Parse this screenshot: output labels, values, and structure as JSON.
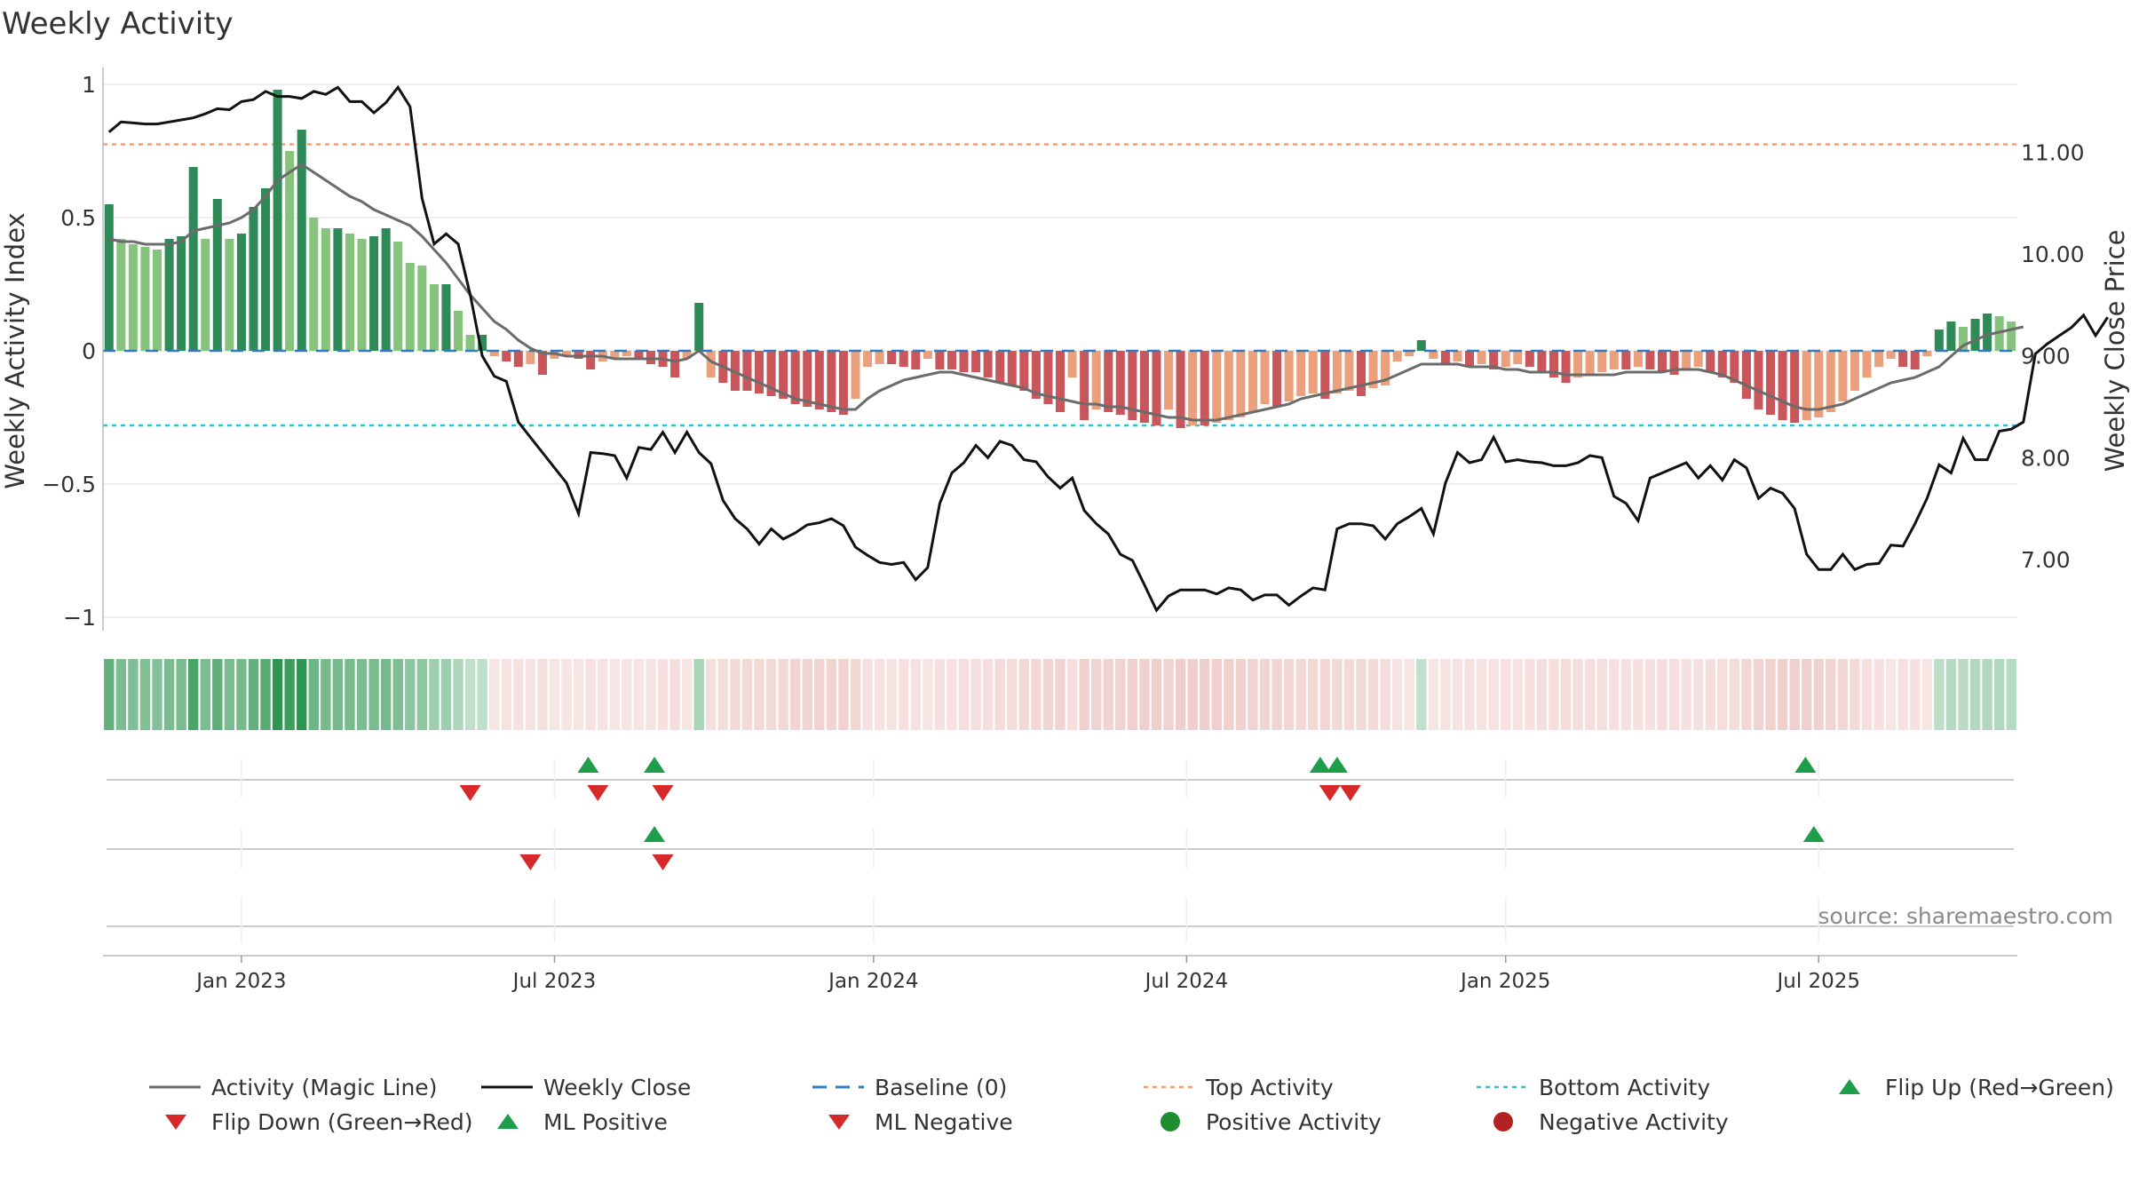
{
  "chart_data": {
    "type": "bar",
    "title": "Weekly Activity",
    "ylabel": "Weekly Activity Index",
    "y2label": "Weekly Close Price",
    "ylim": [
      -1.05,
      1.05
    ],
    "y2lim": [
      6.3,
      11.8
    ],
    "yticks": [
      "1",
      "0.5",
      "0",
      "−0.5",
      "−1"
    ],
    "ytick_values": [
      1,
      0.5,
      0,
      -0.5,
      -1
    ],
    "y2ticks": [
      "11.00",
      "10.00",
      "9.00",
      "8.00",
      "7.00"
    ],
    "y2tick_values": [
      11,
      10,
      9,
      8,
      7
    ],
    "top_activity": 0.775,
    "bottom_activity": -0.28,
    "baseline": 0,
    "start_date": "2022-10-17",
    "xticks": [
      {
        "label": "Jan 2023",
        "week": 11
      },
      {
        "label": "Jul 2023",
        "week": 37
      },
      {
        "label": "Jan 2024",
        "week": 63.5
      },
      {
        "label": "Jul 2024",
        "week": 89.5
      },
      {
        "label": "Jan 2025",
        "week": 116
      },
      {
        "label": "Jul 2025",
        "week": 142
      }
    ],
    "activity": [
      0.55,
      0.42,
      0.4,
      0.39,
      0.38,
      0.42,
      0.43,
      0.69,
      0.42,
      0.57,
      0.42,
      0.44,
      0.54,
      0.61,
      0.98,
      0.75,
      0.83,
      0.5,
      0.46,
      0.46,
      0.44,
      0.42,
      0.43,
      0.46,
      0.41,
      0.33,
      0.32,
      0.25,
      0.25,
      0.15,
      0.06,
      0.06,
      -0.02,
      -0.04,
      -0.06,
      -0.05,
      -0.09,
      -0.03,
      -0.02,
      -0.03,
      -0.07,
      -0.04,
      -0.03,
      -0.02,
      -0.03,
      -0.05,
      -0.06,
      -0.1,
      -0.03,
      0.18,
      -0.1,
      -0.12,
      -0.15,
      -0.15,
      -0.16,
      -0.17,
      -0.18,
      -0.2,
      -0.21,
      -0.22,
      -0.23,
      -0.24,
      -0.18,
      -0.06,
      -0.05,
      -0.05,
      -0.06,
      -0.07,
      -0.03,
      -0.07,
      -0.07,
      -0.08,
      -0.08,
      -0.1,
      -0.12,
      -0.13,
      -0.15,
      -0.18,
      -0.2,
      -0.23,
      -0.1,
      -0.26,
      -0.22,
      -0.23,
      -0.24,
      -0.26,
      -0.27,
      -0.28,
      -0.22,
      -0.29,
      -0.28,
      -0.28,
      -0.27,
      -0.26,
      -0.25,
      -0.23,
      -0.2,
      -0.21,
      -0.19,
      -0.17,
      -0.16,
      -0.18,
      -0.16,
      -0.15,
      -0.17,
      -0.14,
      -0.13,
      -0.04,
      -0.02,
      0.04,
      -0.03,
      -0.05,
      -0.04,
      -0.06,
      -0.05,
      -0.07,
      -0.06,
      -0.05,
      -0.06,
      -0.08,
      -0.1,
      -0.12,
      -0.1,
      -0.09,
      -0.08,
      -0.07,
      -0.07,
      -0.06,
      -0.07,
      -0.08,
      -0.09,
      -0.07,
      -0.06,
      -0.08,
      -0.1,
      -0.12,
      -0.18,
      -0.22,
      -0.24,
      -0.26,
      -0.27,
      -0.26,
      -0.25,
      -0.23,
      -0.19,
      -0.15,
      -0.1,
      -0.06,
      -0.03,
      -0.06,
      -0.07,
      -0.02,
      0.08,
      0.11,
      0.09,
      0.12,
      0.14,
      0.13,
      0.11
    ],
    "magic_line": [
      0.42,
      0.41,
      0.41,
      0.4,
      0.4,
      0.4,
      0.41,
      0.45,
      0.46,
      0.47,
      0.48,
      0.5,
      0.53,
      0.58,
      0.64,
      0.67,
      0.7,
      0.67,
      0.64,
      0.61,
      0.58,
      0.56,
      0.53,
      0.51,
      0.49,
      0.47,
      0.43,
      0.38,
      0.33,
      0.27,
      0.21,
      0.16,
      0.11,
      0.08,
      0.04,
      0.01,
      -0.01,
      -0.01,
      -0.02,
      -0.02,
      -0.02,
      -0.02,
      -0.03,
      -0.03,
      -0.03,
      -0.03,
      -0.03,
      -0.04,
      -0.03,
      0.0,
      -0.04,
      -0.06,
      -0.08,
      -0.1,
      -0.12,
      -0.14,
      -0.16,
      -0.18,
      -0.19,
      -0.2,
      -0.21,
      -0.22,
      -0.22,
      -0.18,
      -0.15,
      -0.13,
      -0.11,
      -0.1,
      -0.09,
      -0.08,
      -0.08,
      -0.09,
      -0.1,
      -0.11,
      -0.12,
      -0.13,
      -0.14,
      -0.16,
      -0.17,
      -0.18,
      -0.19,
      -0.2,
      -0.2,
      -0.21,
      -0.21,
      -0.22,
      -0.23,
      -0.24,
      -0.25,
      -0.25,
      -0.26,
      -0.26,
      -0.26,
      -0.25,
      -0.24,
      -0.23,
      -0.22,
      -0.21,
      -0.2,
      -0.18,
      -0.17,
      -0.16,
      -0.15,
      -0.14,
      -0.13,
      -0.12,
      -0.11,
      -0.09,
      -0.07,
      -0.05,
      -0.05,
      -0.05,
      -0.05,
      -0.06,
      -0.06,
      -0.06,
      -0.07,
      -0.07,
      -0.08,
      -0.08,
      -0.08,
      -0.09,
      -0.09,
      -0.09,
      -0.09,
      -0.09,
      -0.08,
      -0.08,
      -0.08,
      -0.08,
      -0.07,
      -0.07,
      -0.07,
      -0.08,
      -0.09,
      -0.11,
      -0.13,
      -0.15,
      -0.17,
      -0.19,
      -0.21,
      -0.22,
      -0.22,
      -0.21,
      -0.2,
      -0.18,
      -0.16,
      -0.14,
      -0.12,
      -0.11,
      -0.1,
      -0.08,
      -0.06,
      -0.02,
      0.02,
      0.04,
      0.06,
      0.07,
      0.08,
      0.09
    ],
    "weekly_close": [
      11.2,
      11.3,
      11.29,
      11.28,
      11.28,
      11.3,
      11.32,
      11.34,
      11.38,
      11.43,
      11.42,
      11.5,
      11.52,
      11.6,
      11.55,
      11.55,
      11.53,
      11.6,
      11.57,
      11.64,
      11.5,
      11.5,
      11.39,
      11.49,
      11.64,
      11.45,
      10.55,
      10.1,
      10.2,
      10.1,
      9.6,
      9.0,
      8.8,
      8.75,
      8.35,
      8.2,
      8.05,
      7.9,
      7.75,
      7.45,
      8.05,
      8.04,
      8.02,
      7.8,
      8.1,
      8.08,
      8.25,
      8.05,
      8.25,
      8.05,
      7.94,
      7.58,
      7.4,
      7.3,
      7.15,
      7.3,
      7.2,
      7.26,
      7.34,
      7.36,
      7.4,
      7.33,
      7.12,
      7.04,
      6.97,
      6.95,
      6.97,
      6.8,
      6.92,
      7.55,
      7.85,
      7.95,
      8.12,
      8.0,
      8.16,
      8.12,
      7.98,
      7.96,
      7.81,
      7.7,
      7.8,
      7.48,
      7.35,
      7.25,
      7.05,
      6.99,
      6.75,
      6.5,
      6.64,
      6.7,
      6.7,
      6.7,
      6.66,
      6.72,
      6.7,
      6.6,
      6.65,
      6.65,
      6.55,
      6.64,
      6.72,
      6.7,
      7.3,
      7.35,
      7.35,
      7.33,
      7.2,
      7.35,
      7.42,
      7.5,
      7.25,
      7.75,
      8.05,
      7.95,
      7.98,
      8.2,
      7.96,
      7.98,
      7.96,
      7.95,
      7.92,
      7.92,
      7.95,
      8.02,
      8.0,
      7.62,
      7.55,
      7.38,
      7.8,
      7.85,
      7.9,
      7.95,
      7.8,
      7.92,
      7.78,
      7.98,
      7.9,
      7.6,
      7.7,
      7.65,
      7.5,
      7.05,
      6.9,
      6.9,
      7.05,
      6.9,
      6.95,
      6.96,
      7.14,
      7.13,
      7.35,
      7.6,
      7.93,
      7.85,
      8.19,
      7.98,
      7.98,
      8.26,
      8.28,
      8.35,
      9.02,
      9.12,
      9.2,
      9.28,
      9.4,
      9.2,
      9.38
    ],
    "flip_up_weeks": [
      39.8,
      45.3,
      100.6,
      102.0,
      140.9
    ],
    "flip_down_weeks": [
      30.0,
      40.6,
      46.0,
      101.4,
      103.1
    ],
    "ml_positive_weeks": [
      45.3,
      141.6
    ],
    "ml_negative_weeks": [
      35.0,
      46.0
    ],
    "legend": [
      {
        "label": "Activity (Magic Line)",
        "kind": "line",
        "color": "#6b6b6b"
      },
      {
        "label": "Weekly Close",
        "kind": "line",
        "color": "#111111"
      },
      {
        "label": "Baseline (0)",
        "kind": "dash",
        "color": "#2f7dbf"
      },
      {
        "label": "Top Activity",
        "kind": "dot",
        "color": "#f0a070"
      },
      {
        "label": "Bottom Activity",
        "kind": "dot",
        "color": "#2cc1cc"
      },
      {
        "label": "Flip Up (Red→Green)",
        "kind": "tri-up",
        "color": "#1e9e4a"
      },
      {
        "label": "Flip Down (Green→Red)",
        "kind": "tri-down",
        "color": "#d62a2a"
      },
      {
        "label": "ML Positive",
        "kind": "tri-up",
        "color": "#1e9e4a"
      },
      {
        "label": "ML Negative",
        "kind": "tri-down",
        "color": "#d62a2a"
      },
      {
        "label": "Positive Activity",
        "kind": "circle",
        "color": "#1f8c2e"
      },
      {
        "label": "Negative Activity",
        "kind": "circle",
        "color": "#b22222"
      }
    ],
    "legend_placement": "bottom",
    "grid": true,
    "colors": {
      "green_strong": "#2e8a57",
      "green_light": "#86c47d",
      "red_strong": "#c9565a",
      "red_light": "#eaa07d",
      "magic_line": "#6b6b6b",
      "close_line": "#111111",
      "baseline": "#2f7dbf",
      "top_activity": "#f0a070",
      "bottom_activity": "#2cc1cc"
    }
  },
  "source": "source: sharemaestro.com"
}
